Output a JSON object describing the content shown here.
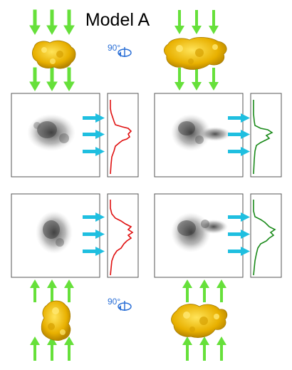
{
  "title": "Model A",
  "rotation_label_top": "90°",
  "rotation_label_bottom": "90°",
  "colors": {
    "green_arrow": "#66e03a",
    "cyan_arrow": "#1fbfe0",
    "structure": "#f0c020",
    "profile_left": "#e01010",
    "profile_right": "#1a8a1a",
    "rotation_icon": "#2a6fd6"
  },
  "icons": [
    "rotation-icon",
    "structure-model",
    "density-projection"
  ],
  "panels": [
    {
      "row": "top",
      "side": "left",
      "profile_color": "red"
    },
    {
      "row": "top",
      "side": "right",
      "profile_color": "green"
    },
    {
      "row": "bottom",
      "side": "left",
      "profile_color": "red"
    },
    {
      "row": "bottom",
      "side": "right",
      "profile_color": "green"
    }
  ]
}
